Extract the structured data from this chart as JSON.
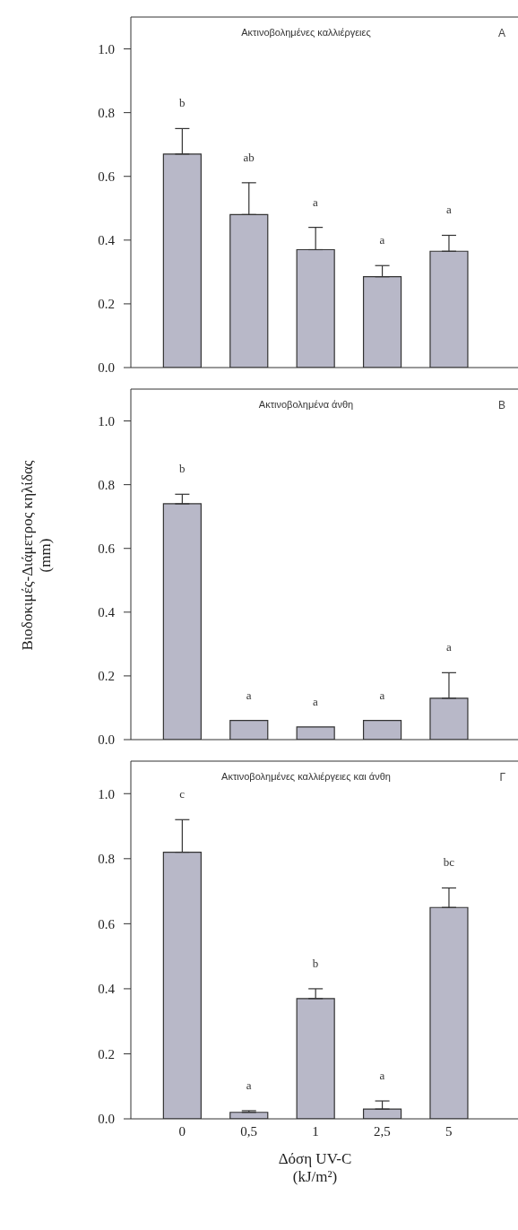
{
  "chart_data": [
    {
      "type": "bar",
      "title": "Ακτινοβολημένες καλλιέργειες",
      "categories": [
        "0",
        "0,5",
        "1",
        "2,5",
        "5"
      ],
      "values": [
        0.67,
        0.48,
        0.37,
        0.285,
        0.365
      ],
      "errors": [
        [
          0.67,
          0.75
        ],
        [
          0.48,
          0.58
        ],
        [
          0.37,
          0.44
        ],
        [
          0.285,
          0.32
        ],
        [
          0.365,
          0.415
        ]
      ],
      "color": "#b8b8c8",
      "ylim": [
        0,
        1.1
      ],
      "yticks": [
        {
          "value": 0,
          "label": "0.0"
        },
        {
          "value": 0.2,
          "label": "0.2"
        },
        {
          "value": 0.4,
          "label": "0.4"
        },
        {
          "value": 0.6,
          "label": "0.6"
        },
        {
          "value": 0.8,
          "label": "0.8"
        },
        {
          "value": 1,
          "label": "1.0"
        }
      ],
      "tick_labels": "y",
      "legend": false,
      "annotations": [
        "A",
        "b",
        "ab",
        "a",
        "a",
        "a"
      ]
    },
    {
      "type": "bar",
      "title": "Ακτινοβολημένα άνθη",
      "ylabel": "Βιοδοκιμές-Διάμετρος κηλίδας\n(mm)",
      "categories": [
        "0",
        "0,5",
        "1",
        "2,5",
        "5"
      ],
      "values": [
        0.74,
        0.06,
        0.04,
        0.06,
        0.13
      ],
      "errors": [
        [
          0.74,
          0.77
        ],
        null,
        null,
        null,
        [
          0.13,
          0.21
        ]
      ],
      "color": "#b8b8c8",
      "ylim": [
        0,
        1.1
      ],
      "yticks": [
        {
          "value": 0,
          "label": "0.0"
        },
        {
          "value": 0.2,
          "label": "0.2"
        },
        {
          "value": 0.4,
          "label": "0.4"
        },
        {
          "value": 0.6,
          "label": "0.6"
        },
        {
          "value": 0.8,
          "label": "0.8"
        },
        {
          "value": 1,
          "label": "1.0"
        }
      ],
      "tick_labels": "y",
      "legend": false,
      "annotations": [
        "B",
        "b",
        "a",
        "a",
        "a",
        "a"
      ]
    },
    {
      "type": "bar",
      "title": "Ακτινοβολημένες καλλιέργειες και άνθη",
      "xlabel": "Δόση UV-C\n(kJ/m²)",
      "categories": [
        "0",
        "0,5",
        "1",
        "2,5",
        "5"
      ],
      "values": [
        0.82,
        0.02,
        0.37,
        0.03,
        0.65
      ],
      "errors": [
        [
          0.82,
          0.92
        ],
        [
          0.02,
          0.025
        ],
        [
          0.37,
          0.4
        ],
        [
          0.03,
          0.055
        ],
        [
          0.65,
          0.71
        ]
      ],
      "color": "#b8b8c8",
      "ylim": [
        0,
        1.1
      ],
      "yticks": [
        {
          "value": 0,
          "label": "0.0"
        },
        {
          "value": 0.2,
          "label": "0.2"
        },
        {
          "value": 0.4,
          "label": "0.4"
        },
        {
          "value": 0.6,
          "label": "0.6"
        },
        {
          "value": 0.8,
          "label": "0.8"
        },
        {
          "value": 1,
          "label": "1.0"
        }
      ],
      "legend": false,
      "annotations": [
        "Γ",
        "c",
        "a",
        "b",
        "a",
        "bc"
      ]
    }
  ]
}
